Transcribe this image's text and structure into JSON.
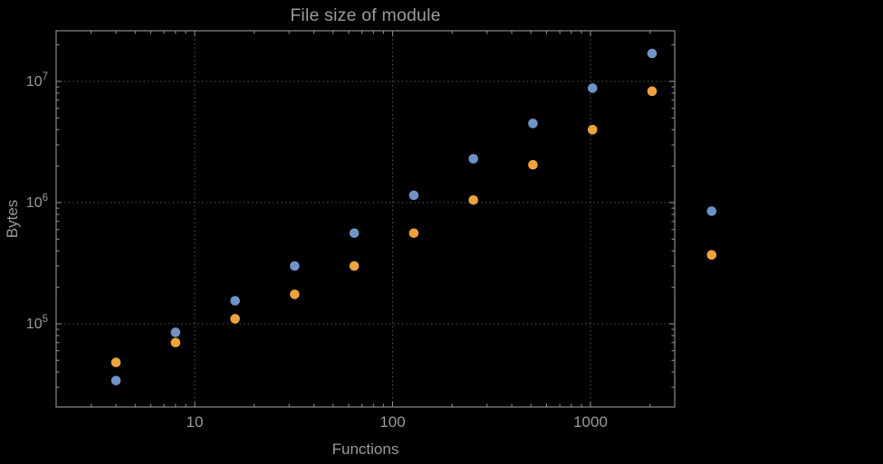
{
  "chart_data": {
    "type": "scatter",
    "title": "File size of module",
    "xlabel": "Functions",
    "ylabel": "Bytes",
    "xscale": "log",
    "yscale": "log",
    "xlim": [
      2,
      2700
    ],
    "ylim": [
      21000,
      26000000
    ],
    "grid": "dotted-major-gridlines",
    "legend": "none",
    "x_ticks": [
      10,
      100,
      1000
    ],
    "x_tick_labels": [
      "10",
      "100",
      "1000"
    ],
    "y_ticks": [
      100000,
      1000000,
      10000000
    ],
    "y_tick_labels": [
      {
        "base": "10",
        "exp": "5"
      },
      {
        "base": "10",
        "exp": "6"
      },
      {
        "base": "10",
        "exp": "7"
      }
    ],
    "colors": {
      "background": "#000000",
      "frame": "#8a8a8a",
      "grid": "#5a5a5a",
      "text": "#9a9a9a",
      "series1": "#6f93c4",
      "series2": "#eda33d"
    },
    "series": [
      {
        "name": "series-blue",
        "color": "#6f93c4",
        "x": [
          4,
          8,
          16,
          32,
          64,
          128,
          256,
          512,
          1024,
          2048,
          4096
        ],
        "y": [
          34000,
          85000,
          155000,
          300000,
          560000,
          1150000,
          2300000,
          4500000,
          8800000,
          17000000,
          850000
        ]
      },
      {
        "name": "series-orange",
        "color": "#eda33d",
        "x": [
          4,
          8,
          16,
          32,
          64,
          128,
          256,
          512,
          1024,
          2048,
          4096
        ],
        "y": [
          48000,
          70000,
          110000,
          175000,
          300000,
          560000,
          1050000,
          2050000,
          4000000,
          8300000,
          370000
        ]
      }
    ]
  }
}
